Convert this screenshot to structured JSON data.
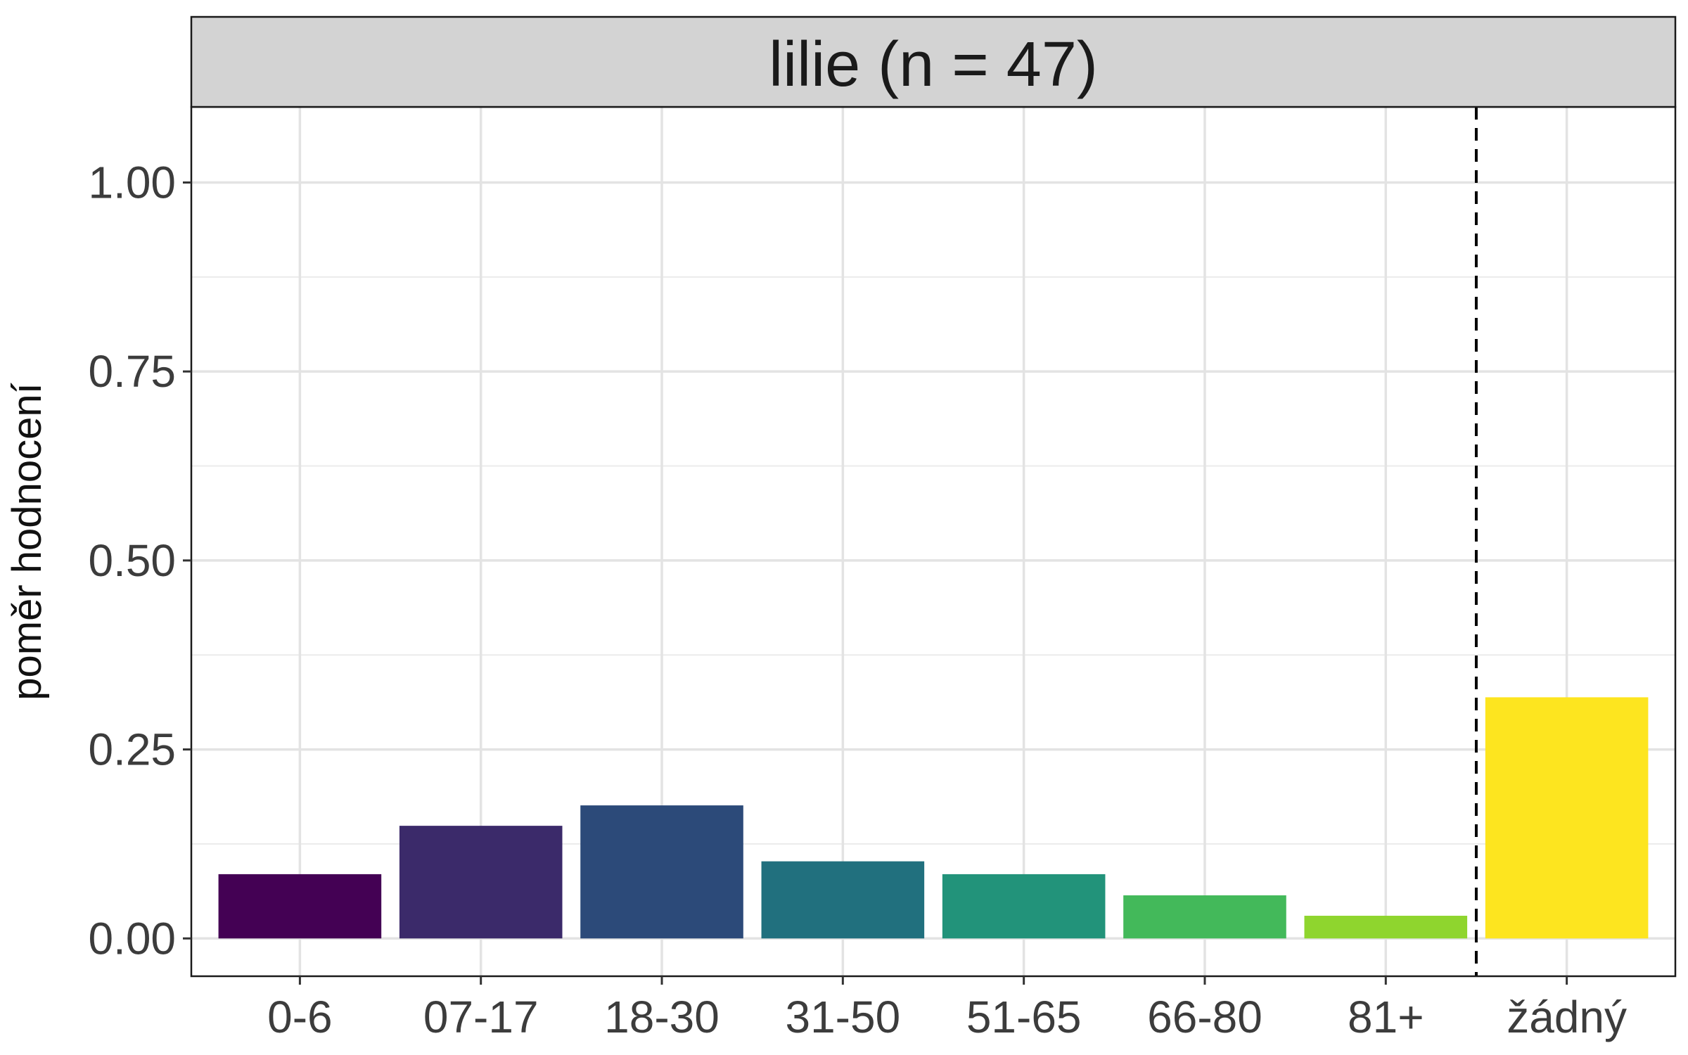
{
  "chart_data": {
    "type": "bar",
    "facet_label": "lilie (n = 47)",
    "title": "",
    "xlabel": "",
    "ylabel": "poměr hodnocení",
    "categories": [
      "0-6",
      "07-17",
      "18-30",
      "31-50",
      "51-65",
      "66-80",
      "81+",
      "žádný"
    ],
    "values": [
      0.085,
      0.149,
      0.176,
      0.102,
      0.085,
      0.057,
      0.03,
      0.319
    ],
    "colors": [
      "#440154",
      "#3b2a6a",
      "#2c4a79",
      "#21707e",
      "#22937a",
      "#43b95a",
      "#8fd52e",
      "#fde51f"
    ],
    "ylim": [
      -0.05,
      1.1
    ],
    "y_ticks": [
      0.0,
      0.25,
      0.5,
      0.75,
      1.0
    ],
    "y_tick_labels": [
      "0.00",
      "0.25",
      "0.50",
      "0.75",
      "1.00"
    ],
    "grid": true,
    "reference_line": {
      "after_category": "81+",
      "style": "dashed"
    },
    "legend": "none"
  }
}
